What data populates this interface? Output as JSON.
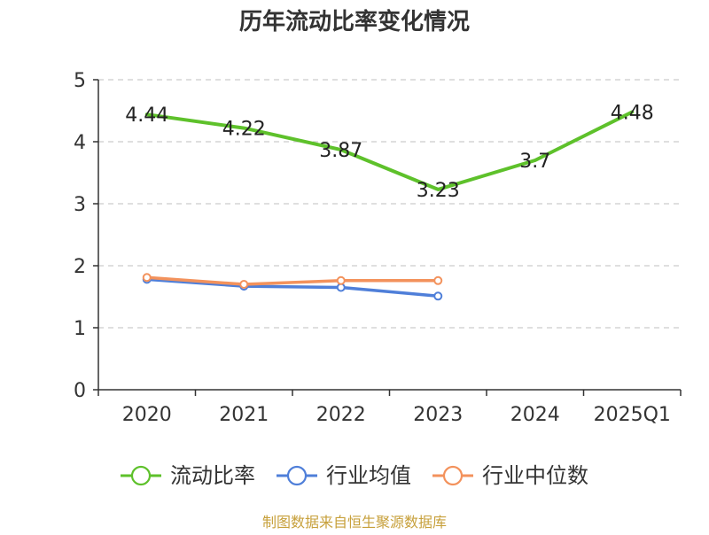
{
  "chart_data": {
    "type": "line",
    "title": "历年流动比率变化情况",
    "categories": [
      "2020",
      "2021",
      "2022",
      "2023",
      "2024",
      "2025Q1"
    ],
    "ylim": [
      0,
      5
    ],
    "yticks": [
      0,
      1,
      2,
      3,
      4,
      5
    ],
    "grid": true,
    "legend_position": "bottom",
    "series": [
      {
        "name": "流动比率",
        "color": "#5ec12b",
        "values": [
          4.44,
          4.22,
          3.87,
          3.23,
          3.7,
          4.48
        ],
        "labels": [
          "4.44",
          "4.22",
          "3.87",
          "3.23",
          "3.7",
          "4.48"
        ],
        "show_labels": true,
        "show_markers": false
      },
      {
        "name": "行业均值",
        "color": "#4f7fd9",
        "values": [
          1.78,
          1.67,
          1.65,
          1.51,
          null,
          null
        ],
        "show_labels": false,
        "show_markers": true
      },
      {
        "name": "行业中位数",
        "color": "#f3925c",
        "values": [
          1.81,
          1.7,
          1.76,
          1.76,
          null,
          null
        ],
        "show_labels": false,
        "show_markers": true
      }
    ]
  },
  "source": "制图数据来自恒生聚源数据库"
}
